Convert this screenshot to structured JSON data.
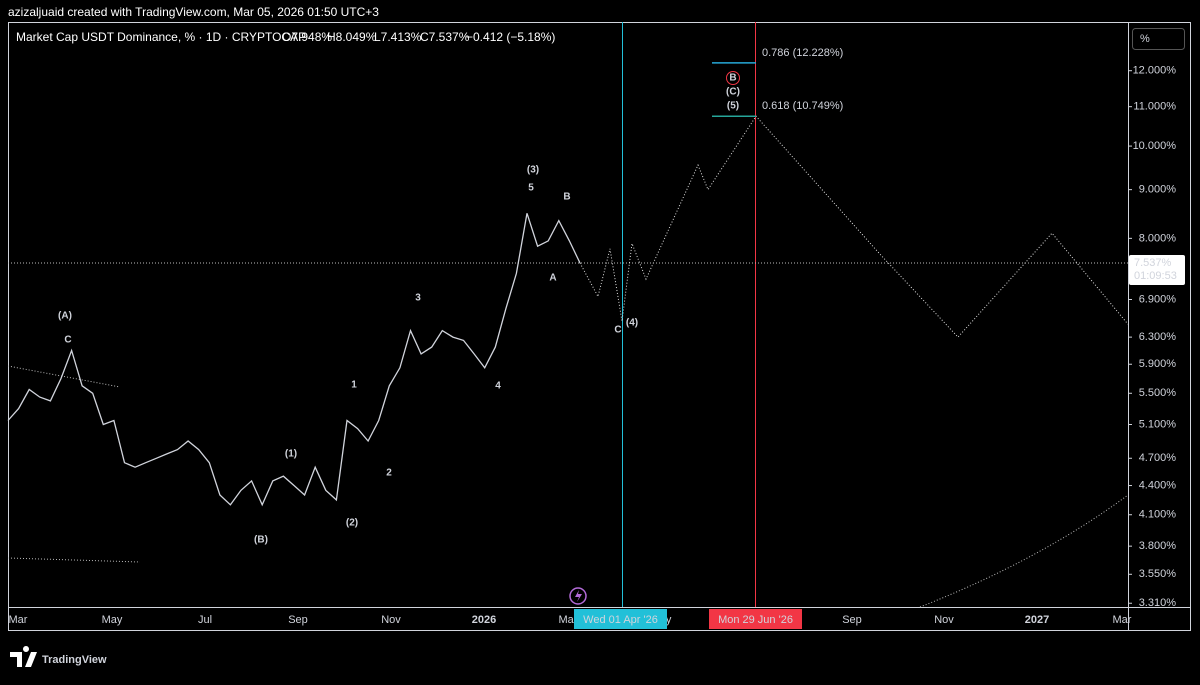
{
  "header": "azizaljuaid created with TradingView.com, Mar 05, 2026 01:50 UTC+3",
  "legend": "Market Cap USDT Dominance, % · 1D · CRYPTOCAP",
  "ohlc": [
    "O7.948%",
    "H8.049%",
    "L7.413%",
    "C7.537%",
    "−0.412 (−5.18%)"
  ],
  "scale_button": "%",
  "footer": "TradingView",
  "chart_data": {
    "type": "line",
    "log_scale": true,
    "ylim": [
      3.28,
      13.5
    ],
    "yticks": [
      {
        "value": 12,
        "label": "12.000%"
      },
      {
        "value": 11,
        "label": "11.000%"
      },
      {
        "value": 10,
        "label": "10.000%"
      },
      {
        "value": 9,
        "label": "9.000%"
      },
      {
        "value": 8,
        "label": "8.000%"
      },
      {
        "value": 6.9,
        "label": "6.900%"
      },
      {
        "value": 6.3,
        "label": "6.300%"
      },
      {
        "value": 5.9,
        "label": "5.900%"
      },
      {
        "value": 5.5,
        "label": "5.500%"
      },
      {
        "value": 5.1,
        "label": "5.100%"
      },
      {
        "value": 4.7,
        "label": "4.700%"
      },
      {
        "value": 4.4,
        "label": "4.400%"
      },
      {
        "value": 4.1,
        "label": "4.100%"
      },
      {
        "value": 3.8,
        "label": "3.800%"
      },
      {
        "value": 3.55,
        "label": "3.550%"
      },
      {
        "value": 3.31,
        "label": "3.310%"
      }
    ],
    "xticks": [
      "Mar",
      "May",
      "Jul",
      "Sep",
      "Nov",
      "2026",
      "Mar",
      "May",
      "Sep",
      "Nov",
      "2027",
      "Mar"
    ],
    "markers": [
      "Wed 01 Apr '26",
      "Mon 29 Jun '26"
    ],
    "series": [
      {
        "color": "#d1d4dc",
        "values": [
          5.15,
          5.3,
          5.55,
          5.45,
          5.4,
          5.7,
          6.1,
          5.6,
          5.5,
          5.1,
          5.15,
          4.65,
          4.6,
          4.65,
          4.7,
          4.75,
          4.8,
          4.9,
          4.8,
          4.65,
          4.3,
          4.2,
          4.35,
          4.45,
          4.2,
          4.45,
          4.5,
          4.4,
          4.3,
          4.6,
          4.35,
          4.25,
          5.15,
          5.05,
          4.9,
          5.15,
          5.6,
          5.85,
          6.4,
          6.05,
          6.15,
          6.4,
          6.3,
          6.25,
          6.05,
          5.85,
          6.15,
          6.75,
          7.35,
          8.5,
          7.85,
          7.95,
          8.35,
          7.95,
          7.537
        ]
      },
      {
        "color": "#e0e0e0",
        "values": [
          7.537,
          6.95,
          7.8,
          6.55,
          7.9,
          7.25,
          9.55,
          9.0,
          10.749,
          7.7,
          6.3,
          8.1,
          6.5
        ]
      }
    ],
    "last_price": {
      "value": 7.537,
      "label": "7.537%"
    },
    "countdown": "01:09:53",
    "fib": [
      {
        "value": 12.228,
        "label": "0.786 (12.228%)",
        "color": "#26a8d8"
      },
      {
        "value": 10.749,
        "label": "0.618 (10.749%)",
        "color": "#26a69a"
      }
    ],
    "waves": [
      {
        "label": "(A)",
        "color": "#4caf50"
      },
      {
        "label": "C",
        "color": "#f23645"
      },
      {
        "label": "(B)",
        "color": "#4caf50"
      },
      {
        "label": "(1)",
        "color": "#ffffff"
      },
      {
        "label": "(2)",
        "color": "#ffffff"
      },
      {
        "label": "1",
        "color": "#22c0d8"
      },
      {
        "label": "2",
        "color": "#22c0d8"
      },
      {
        "label": "3",
        "color": "#22c0d8"
      },
      {
        "label": "4",
        "color": "#22c0d8"
      },
      {
        "label": "(3)",
        "color": "#ffffff"
      },
      {
        "label": "5",
        "color": "#22c0d8"
      },
      {
        "label": "B",
        "color": "#f23645"
      },
      {
        "label": "A",
        "color": "#f23645"
      },
      {
        "label": "C",
        "color": "#f23645"
      },
      {
        "label": "(4)",
        "color": "#ffffff"
      },
      {
        "label": "B",
        "color": "#f23645"
      },
      {
        "label": "(C)",
        "color": "#4caf50"
      },
      {
        "label": "(5)",
        "color": "#ffffff"
      }
    ]
  }
}
